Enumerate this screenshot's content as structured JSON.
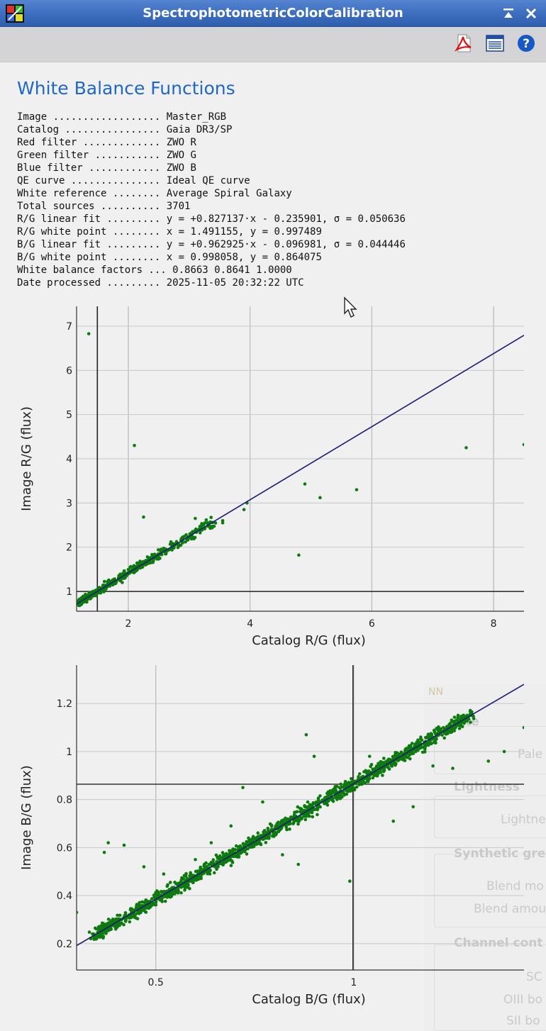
{
  "window": {
    "title": "SpectrophotometricColorCalibration",
    "icons": [
      "app-icon",
      "collapse-icon",
      "close-icon"
    ]
  },
  "toolbar": {
    "buttons": [
      "pdf-export-icon",
      "document-view-icon",
      "help-icon"
    ]
  },
  "report": {
    "heading": "White Balance Functions",
    "rows": [
      {
        "label": "Image ..................",
        "value": "Master_RGB"
      },
      {
        "label": "Catalog ................",
        "value": "Gaia DR3/SP"
      },
      {
        "label": "Red filter .............",
        "value": "ZWO R"
      },
      {
        "label": "Green filter ...........",
        "value": "ZWO G"
      },
      {
        "label": "Blue filter ............",
        "value": "ZWO B"
      },
      {
        "label": "QE curve ...............",
        "value": "Ideal QE curve"
      },
      {
        "label": "White reference ........",
        "value": "Average Spiral Galaxy"
      },
      {
        "label": "Total sources ..........",
        "value": "3701"
      },
      {
        "label": "R/G linear fit .........",
        "value": "y = +0.827137·x - 0.235901, σ = 0.050636"
      },
      {
        "label": "R/G white point ........",
        "value": "x = 1.491155, y = 0.997489"
      },
      {
        "label": "B/G linear fit .........",
        "value": "y = +0.962925·x - 0.096981, σ = 0.044446"
      },
      {
        "label": "B/G white point ........",
        "value": "x = 0.998058, y = 0.864075"
      },
      {
        "label": "White balance factors ...",
        "value": "0.8663 0.8641 1.0000"
      },
      {
        "label": "Date processed .........",
        "value": "2025-11-05 20:32:22 UTC"
      }
    ]
  },
  "chart_data": [
    {
      "type": "scatter",
      "xlabel": "Catalog R/G (flux)",
      "ylabel": "Image R/G (flux)",
      "xlim": [
        1.15,
        8.5
      ],
      "ylim": [
        0.55,
        7.45
      ],
      "xticks": [
        2,
        4,
        6,
        8
      ],
      "yticks": [
        1,
        2,
        3,
        4,
        5,
        6,
        7
      ],
      "grid": true,
      "colors": {
        "points": "#0d7a0d",
        "fit": "#1a1a7a",
        "white_point": "#222222"
      },
      "fit": {
        "slope": 0.827137,
        "intercept": -0.235901
      },
      "white_point": {
        "x": 1.491155,
        "y": 0.997489
      },
      "dense_cluster": {
        "x_from": 1.2,
        "x_to": 3.4,
        "spread": 0.06,
        "count": 520
      },
      "outliers": [
        [
          1.35,
          6.83
        ],
        [
          2.1,
          4.3
        ],
        [
          2.25,
          2.68
        ],
        [
          3.1,
          2.65
        ],
        [
          3.3,
          2.55
        ],
        [
          3.55,
          2.6
        ],
        [
          3.55,
          2.55
        ],
        [
          3.95,
          3.0
        ],
        [
          3.9,
          2.85
        ],
        [
          4.8,
          1.82
        ],
        [
          4.9,
          3.43
        ],
        [
          5.15,
          3.12
        ],
        [
          5.75,
          3.3
        ],
        [
          7.55,
          4.25
        ],
        [
          8.5,
          4.32
        ],
        [
          2.95,
          2.28
        ],
        [
          2.7,
          2.12
        ],
        [
          2.55,
          1.83
        ],
        [
          2.0,
          1.42
        ],
        [
          1.9,
          1.2
        ]
      ]
    },
    {
      "type": "scatter",
      "xlabel": "Catalog B/G (flux)",
      "ylabel": "Image B/G (flux)",
      "xlim": [
        0.3,
        1.43
      ],
      "ylim": [
        0.09,
        1.36
      ],
      "xticks": [
        0.5,
        1
      ],
      "yticks": [
        0.2,
        0.4,
        0.6,
        0.8,
        1,
        1.2
      ],
      "grid": true,
      "colors": {
        "points": "#0d7a0d",
        "fit": "#1a1a7a",
        "white_point": "#222222"
      },
      "fit": {
        "slope": 0.962925,
        "intercept": -0.096981
      },
      "white_point": {
        "x": 0.998058,
        "y": 0.864075
      },
      "dense_cluster": {
        "x_from": 0.34,
        "x_to": 1.3,
        "spread": 0.018,
        "count": 1500
      },
      "outliers": [
        [
          0.3,
          0.33
        ],
        [
          0.37,
          0.58
        ],
        [
          0.38,
          0.62
        ],
        [
          0.42,
          0.61
        ],
        [
          0.47,
          0.52
        ],
        [
          0.58,
          0.47
        ],
        [
          0.6,
          0.55
        ],
        [
          0.69,
          0.69
        ],
        [
          0.72,
          0.85
        ],
        [
          0.77,
          0.79
        ],
        [
          0.82,
          0.57
        ],
        [
          0.86,
          0.53
        ],
        [
          0.99,
          0.46
        ],
        [
          0.88,
          1.07
        ],
        [
          1.04,
          0.98
        ],
        [
          1.1,
          0.71
        ],
        [
          1.15,
          0.77
        ],
        [
          1.2,
          0.94
        ],
        [
          1.25,
          0.93
        ],
        [
          1.34,
          0.96
        ],
        [
          1.38,
          1.0
        ],
        [
          1.43,
          1.1
        ],
        [
          0.64,
          0.62
        ],
        [
          0.52,
          0.49
        ],
        [
          0.9,
          0.98
        ]
      ]
    }
  ],
  "background_window": {
    "labels": [
      "NN",
      "tte",
      "Pale",
      "Lightness",
      "Lightne",
      "Synthetic gre",
      "Blend mo",
      "Blend amou",
      "Channel cont",
      "SC",
      "OIII bo",
      "SII bo"
    ]
  }
}
